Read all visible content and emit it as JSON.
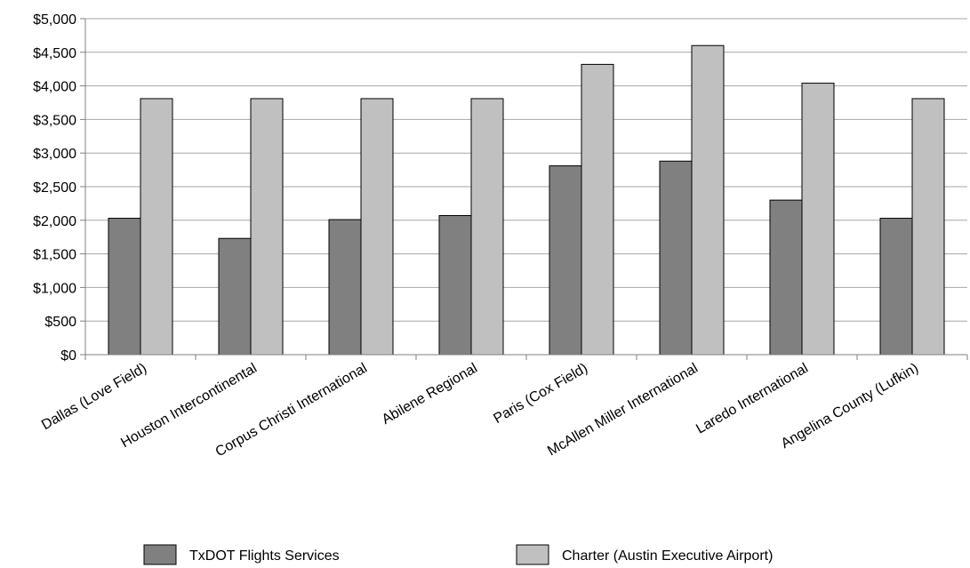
{
  "chart_data": {
    "type": "bar",
    "categories": [
      "Dallas (Love Field)",
      "Houston Intercontinental",
      "Corpus Christi International",
      "Abilene Regional",
      "Paris (Cox Field)",
      "McAllen Miller International",
      "Laredo International",
      "Angelina County (Lufkin)"
    ],
    "series": [
      {
        "name": "TxDOT Flights Services",
        "color": "#808080",
        "values": [
          2030,
          1730,
          2010,
          2070,
          2810,
          2880,
          2300,
          2030
        ]
      },
      {
        "name": "Charter (Austin Executive Airport)",
        "color": "#c0c0c0",
        "values": [
          3810,
          3810,
          3810,
          3810,
          4320,
          4600,
          4040,
          3810
        ]
      }
    ],
    "ylim": [
      0,
      5000
    ],
    "yticks": [
      "$0",
      "$500",
      "$1,000",
      "$1,500",
      "$2,000",
      "$2,500",
      "$3,000",
      "$3,500",
      "$4,000",
      "$4,500",
      "$5,000"
    ],
    "ytick_values": [
      0,
      500,
      1000,
      1500,
      2000,
      2500,
      3000,
      3500,
      4000,
      4500,
      5000
    ],
    "grid": true,
    "legend_position": "bottom",
    "title": "",
    "xlabel": "",
    "ylabel": ""
  }
}
